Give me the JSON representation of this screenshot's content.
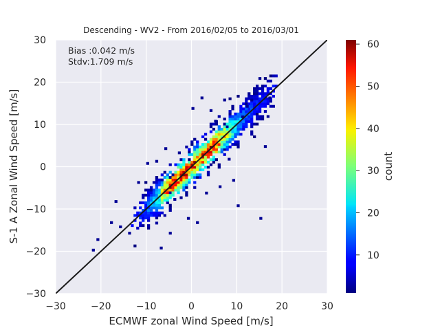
{
  "chart_data": {
    "type": "heatmap",
    "title": "Descending - WV2 - From 2016/02/05 to 2016/03/01",
    "xlabel": "ECMWF zonal Wind Speed [m/s]",
    "ylabel": "S-1 A Zonal Wind Speed [m/s]",
    "xlim": [
      -30,
      30
    ],
    "ylim": [
      -30,
      30
    ],
    "x_ticks": [
      "−30",
      "−20",
      "−10",
      "0",
      "10",
      "20",
      "30"
    ],
    "y_ticks": [
      "−30",
      "−20",
      "−10",
      "0",
      "10",
      "20",
      "30"
    ],
    "x_tick_values": [
      -30,
      -20,
      -10,
      0,
      10,
      20,
      30
    ],
    "y_tick_values": [
      -30,
      -20,
      -10,
      0,
      10,
      20,
      30
    ],
    "grid": true,
    "annotations": [
      "Bias :0.042 m/s",
      "Stdv:1.709 m/s"
    ],
    "reference_line": {
      "from": [
        -30,
        -30
      ],
      "to": [
        30,
        30
      ],
      "color": "#1a1a1a"
    },
    "colorbar": {
      "label": "count",
      "range": [
        1,
        61
      ],
      "ticks": [
        "10",
        "20",
        "30",
        "40",
        "50",
        "60"
      ],
      "tick_values": [
        10,
        20,
        30,
        40,
        50,
        60
      ],
      "colormap": "jet"
    },
    "density": {
      "bin_size": 0.6,
      "center_line": "y = x",
      "core_x_range": [
        -14,
        19
      ],
      "max_count": 61,
      "peak_x": 2,
      "secondary_peak_x": -4,
      "outliers": [
        [
          -21,
          -17.5
        ],
        [
          -22,
          -20
        ],
        [
          -18,
          -13.5
        ],
        [
          -17,
          -8.5
        ],
        [
          -16,
          -14.5
        ],
        [
          -7,
          -19.5
        ],
        [
          -5,
          -16
        ],
        [
          2,
          16
        ],
        [
          9,
          -3.5
        ],
        [
          10,
          -9.5
        ],
        [
          12,
          14
        ],
        [
          15,
          -12.5
        ],
        [
          -1,
          -12.5
        ],
        [
          1,
          -13.5
        ],
        [
          3,
          -6.5
        ],
        [
          -4,
          -8
        ],
        [
          -10,
          0.5
        ],
        [
          -8,
          1
        ],
        [
          -6,
          4
        ],
        [
          4,
          13
        ],
        [
          7,
          15.5
        ],
        [
          14,
          17
        ],
        [
          17,
          16
        ],
        [
          16,
          4.5
        ],
        [
          11,
          11.5
        ],
        [
          6,
          -5
        ],
        [
          8,
          1.5
        ],
        [
          -3,
          3
        ],
        [
          0,
          13.5
        ],
        [
          -14,
          -16
        ],
        [
          13,
          15.5
        ],
        [
          5,
          10.5
        ],
        [
          -12,
          -4
        ]
      ]
    }
  },
  "colors": {
    "plot_background": "#eaeaf2",
    "grid": "#ffffff",
    "reference_line": "#1a1a1a",
    "text": "#262626"
  }
}
